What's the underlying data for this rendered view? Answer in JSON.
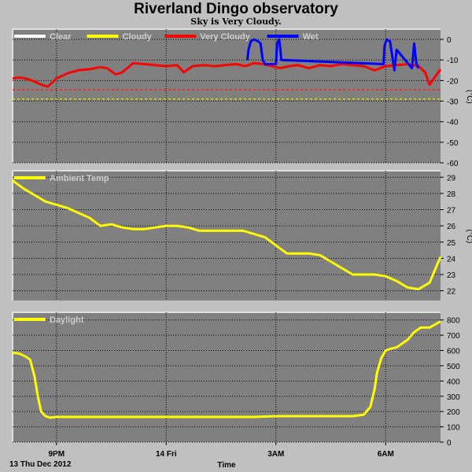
{
  "page": {
    "title": "Riverland Dingo observatory",
    "subtitle": "Sky is Very Cloudy.",
    "date_label": "13 Thu Dec 2012",
    "x_axis_label": "Time"
  },
  "x_axis": {
    "range_hours": [
      0,
      19.5
    ],
    "ticks": [
      {
        "label": "9PM",
        "hour": 2
      },
      {
        "label": "14 Fri",
        "hour": 7
      },
      {
        "label": "3AM",
        "hour": 12
      },
      {
        "label": "6AM",
        "hour": 17
      }
    ]
  },
  "colors": {
    "plot_bg": "#808080",
    "grid": "#000000",
    "clear": "#ffffff",
    "cloudy": "#ffff00",
    "very_cloudy": "#ff0000",
    "wet": "#0000ff"
  },
  "chart_data": [
    {
      "type": "line",
      "panel": "sky",
      "y_unit": "(°C)",
      "ylim": [
        -60,
        5
      ],
      "yticks": [
        0,
        -10,
        -20,
        -30,
        -40,
        -50,
        -60
      ],
      "legend": [
        "Clear",
        "Cloudy",
        "Very Cloudy",
        "Wet"
      ],
      "thresholds": [
        {
          "name": "Very Cloudy",
          "value": -24.5
        },
        {
          "name": "Cloudy",
          "value": -29
        }
      ],
      "series": [
        {
          "name": "Very Cloudy",
          "x": [
            0,
            0.3,
            0.6,
            0.9,
            1.1,
            1.3,
            1.6,
            2.0,
            2.5,
            3.0,
            3.5,
            4.0,
            4.3,
            4.7,
            5.0,
            5.5,
            6.0,
            6.5,
            7.0,
            7.5,
            7.8,
            8.2,
            8.7,
            9.2,
            9.7,
            10.2,
            10.6,
            11.0,
            11.4,
            11.8,
            12.2,
            12.6,
            13.0,
            13.5,
            14.0,
            14.5,
            15.0,
            15.5,
            16.0,
            16.5,
            17.0,
            17.5,
            18.0,
            18.5,
            18.8,
            19.0,
            19.2,
            19.5
          ],
          "values": [
            -19,
            -18.5,
            -19,
            -20,
            -21,
            -22,
            -23,
            -19,
            -16.5,
            -15,
            -14.5,
            -13.5,
            -14,
            -17,
            -16,
            -11.5,
            -12,
            -12.5,
            -13,
            -12.5,
            -16,
            -13,
            -12.5,
            -13,
            -12.5,
            -12,
            -13,
            -11.5,
            -12,
            -13,
            -14,
            -13,
            -12.5,
            -14,
            -12.5,
            -13,
            -12,
            -12.5,
            -13,
            -15,
            -13,
            -12.5,
            -12,
            -13,
            -16,
            -22,
            -19,
            -14.5
          ]
        },
        {
          "name": "Wet",
          "x": [
            10.7,
            10.75,
            10.85,
            11.0,
            11.2,
            11.3,
            11.4,
            11.5,
            12.0,
            12.05,
            12.15,
            12.25,
            16.9,
            16.95,
            17.05,
            17.2,
            17.3,
            17.4,
            17.5,
            18.2,
            18.3,
            18.4,
            18.5
          ],
          "values": [
            -10,
            -5,
            -1,
            0,
            -1,
            -2,
            -10,
            -12,
            -12,
            -2,
            0,
            -10,
            -12,
            -3,
            0,
            -1,
            -8,
            -15,
            -5,
            -14,
            -2,
            -12,
            -14
          ]
        }
      ]
    },
    {
      "type": "line",
      "panel": "ambient",
      "y_unit": "(°C)",
      "ylim": [
        21.4,
        29.4
      ],
      "yticks": [
        22,
        23,
        24,
        25,
        26,
        27,
        28,
        29
      ],
      "legend": [
        "Ambient Temp"
      ],
      "series": [
        {
          "name": "Ambient Temp",
          "x": [
            0,
            0.5,
            1.0,
            1.5,
            2.0,
            2.5,
            3.0,
            3.5,
            4.0,
            4.5,
            5.0,
            5.5,
            6.0,
            6.5,
            7.0,
            7.5,
            8.0,
            8.5,
            9.0,
            9.5,
            10.0,
            10.5,
            11.0,
            11.5,
            12.0,
            12.5,
            13.0,
            13.5,
            14.0,
            14.5,
            15.0,
            15.5,
            16.0,
            16.5,
            17.0,
            17.5,
            18.0,
            18.5,
            19.0,
            19.5
          ],
          "values": [
            28.8,
            28.3,
            27.9,
            27.5,
            27.3,
            27.1,
            26.8,
            26.5,
            26.0,
            26.1,
            25.9,
            25.8,
            25.8,
            25.9,
            26.0,
            26.0,
            25.9,
            25.7,
            25.7,
            25.7,
            25.7,
            25.7,
            25.5,
            25.3,
            24.8,
            24.3,
            24.3,
            24.3,
            24.2,
            23.8,
            23.4,
            23.0,
            23.0,
            23.0,
            22.9,
            22.6,
            22.2,
            22.1,
            22.5,
            24.1
          ]
        }
      ]
    },
    {
      "type": "line",
      "panel": "daylight",
      "ylim": [
        0,
        850
      ],
      "yticks": [
        0,
        100,
        200,
        300,
        400,
        500,
        600,
        700,
        800
      ],
      "legend": [
        "Daylight"
      ],
      "series": [
        {
          "name": "Daylight",
          "x": [
            0,
            0.3,
            0.6,
            0.8,
            1.0,
            1.15,
            1.3,
            1.5,
            1.7,
            2.0,
            3,
            4,
            5,
            6,
            7,
            8,
            9,
            10,
            11,
            12,
            13,
            14,
            15,
            15.5,
            16.0,
            16.3,
            16.5,
            16.6,
            16.8,
            17.0,
            17.2,
            17.5,
            18.0,
            18.3,
            18.6,
            19.0,
            19.5
          ],
          "values": [
            585,
            580,
            560,
            540,
            430,
            300,
            200,
            170,
            160,
            165,
            165,
            165,
            165,
            165,
            165,
            165,
            165,
            165,
            165,
            170,
            170,
            170,
            170,
            170,
            180,
            230,
            350,
            450,
            550,
            600,
            610,
            620,
            670,
            720,
            750,
            750,
            790
          ]
        }
      ]
    }
  ]
}
